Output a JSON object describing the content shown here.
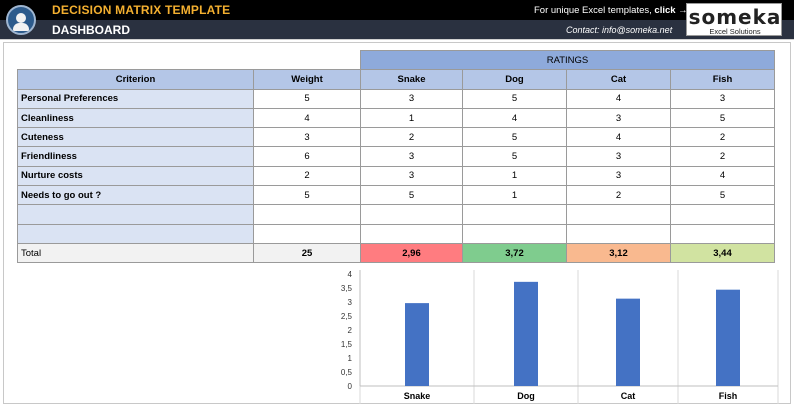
{
  "header": {
    "app_title": "DECISION MATRIX TEMPLATE",
    "page_title": "DASHBOARD",
    "promo_text": "For unique Excel templates, ",
    "promo_link": "click →",
    "contact": "Contact: info@someka.net",
    "brand_name": "someka",
    "brand_sub": "Excel Solutions"
  },
  "table": {
    "ratings_label": "RATINGS",
    "headers": {
      "criterion": "Criterion",
      "weight": "Weight"
    },
    "options": [
      "Snake",
      "Dog",
      "Cat",
      "Fish"
    ],
    "rows": [
      {
        "criterion": "Personal Preferences",
        "weight": "5",
        "ratings": [
          "3",
          "5",
          "4",
          "3"
        ]
      },
      {
        "criterion": "Cleanliness",
        "weight": "4",
        "ratings": [
          "1",
          "4",
          "3",
          "5"
        ]
      },
      {
        "criterion": "Cuteness",
        "weight": "3",
        "ratings": [
          "2",
          "5",
          "4",
          "2"
        ]
      },
      {
        "criterion": "Friendliness",
        "weight": "6",
        "ratings": [
          "3",
          "5",
          "3",
          "2"
        ]
      },
      {
        "criterion": "Nurture costs",
        "weight": "2",
        "ratings": [
          "3",
          "1",
          "3",
          "4"
        ]
      },
      {
        "criterion": "Needs to go out ?",
        "weight": "5",
        "ratings": [
          "5",
          "1",
          "2",
          "5"
        ]
      },
      {
        "criterion": "",
        "weight": "",
        "ratings": [
          "",
          "",
          "",
          ""
        ]
      },
      {
        "criterion": "",
        "weight": "",
        "ratings": [
          "",
          "",
          "",
          ""
        ]
      }
    ],
    "total": {
      "label": "Total",
      "weight": "25",
      "scores": [
        "2,96",
        "3,72",
        "3,12",
        "3,44"
      ],
      "colors": [
        "#ff7c80",
        "#7fcc8e",
        "#f9b98f",
        "#d1e3a1"
      ]
    }
  },
  "chart_data": {
    "type": "bar",
    "categories": [
      "Snake",
      "Dog",
      "Cat",
      "Fish"
    ],
    "values": [
      2.96,
      3.72,
      3.12,
      3.44
    ],
    "ylim": [
      0,
      4
    ],
    "yticks": [
      "0",
      "0,5",
      "1",
      "1,5",
      "2",
      "2,5",
      "3",
      "3,5",
      "4"
    ],
    "bar_color": "#4472c4",
    "grid": false,
    "legend": "none"
  }
}
